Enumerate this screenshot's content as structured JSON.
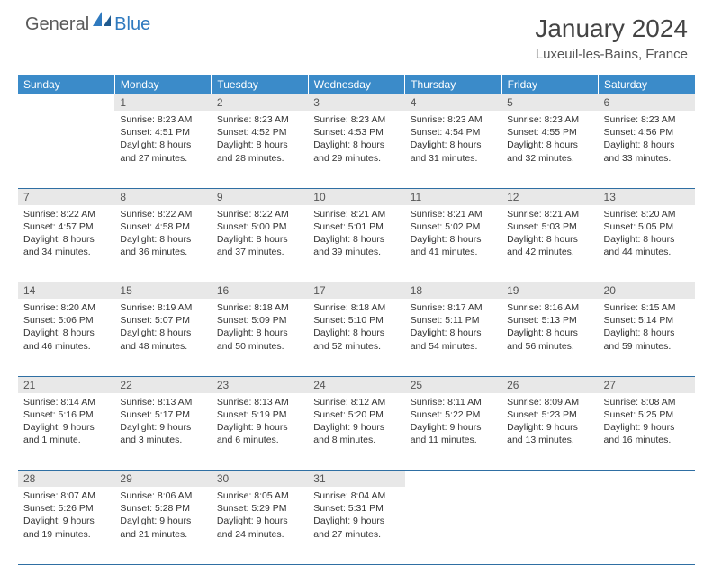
{
  "brand": {
    "part1": "General",
    "part2": "Blue"
  },
  "title": "January 2024",
  "location": "Luxeuil-les-Bains, France",
  "colors": {
    "header_bg": "#3b8bc9",
    "header_fg": "#ffffff",
    "daynum_bg": "#e8e8e8",
    "rule": "#2f6fa3",
    "brand_accent": "#2f7abf",
    "text": "#333333"
  },
  "weekdays": [
    "Sunday",
    "Monday",
    "Tuesday",
    "Wednesday",
    "Thursday",
    "Friday",
    "Saturday"
  ],
  "weeks": [
    [
      {
        "n": "",
        "sunrise": "",
        "sunset": "",
        "daylight": ""
      },
      {
        "n": "1",
        "sunrise": "Sunrise: 8:23 AM",
        "sunset": "Sunset: 4:51 PM",
        "daylight": "Daylight: 8 hours and 27 minutes."
      },
      {
        "n": "2",
        "sunrise": "Sunrise: 8:23 AM",
        "sunset": "Sunset: 4:52 PM",
        "daylight": "Daylight: 8 hours and 28 minutes."
      },
      {
        "n": "3",
        "sunrise": "Sunrise: 8:23 AM",
        "sunset": "Sunset: 4:53 PM",
        "daylight": "Daylight: 8 hours and 29 minutes."
      },
      {
        "n": "4",
        "sunrise": "Sunrise: 8:23 AM",
        "sunset": "Sunset: 4:54 PM",
        "daylight": "Daylight: 8 hours and 31 minutes."
      },
      {
        "n": "5",
        "sunrise": "Sunrise: 8:23 AM",
        "sunset": "Sunset: 4:55 PM",
        "daylight": "Daylight: 8 hours and 32 minutes."
      },
      {
        "n": "6",
        "sunrise": "Sunrise: 8:23 AM",
        "sunset": "Sunset: 4:56 PM",
        "daylight": "Daylight: 8 hours and 33 minutes."
      }
    ],
    [
      {
        "n": "7",
        "sunrise": "Sunrise: 8:22 AM",
        "sunset": "Sunset: 4:57 PM",
        "daylight": "Daylight: 8 hours and 34 minutes."
      },
      {
        "n": "8",
        "sunrise": "Sunrise: 8:22 AM",
        "sunset": "Sunset: 4:58 PM",
        "daylight": "Daylight: 8 hours and 36 minutes."
      },
      {
        "n": "9",
        "sunrise": "Sunrise: 8:22 AM",
        "sunset": "Sunset: 5:00 PM",
        "daylight": "Daylight: 8 hours and 37 minutes."
      },
      {
        "n": "10",
        "sunrise": "Sunrise: 8:21 AM",
        "sunset": "Sunset: 5:01 PM",
        "daylight": "Daylight: 8 hours and 39 minutes."
      },
      {
        "n": "11",
        "sunrise": "Sunrise: 8:21 AM",
        "sunset": "Sunset: 5:02 PM",
        "daylight": "Daylight: 8 hours and 41 minutes."
      },
      {
        "n": "12",
        "sunrise": "Sunrise: 8:21 AM",
        "sunset": "Sunset: 5:03 PM",
        "daylight": "Daylight: 8 hours and 42 minutes."
      },
      {
        "n": "13",
        "sunrise": "Sunrise: 8:20 AM",
        "sunset": "Sunset: 5:05 PM",
        "daylight": "Daylight: 8 hours and 44 minutes."
      }
    ],
    [
      {
        "n": "14",
        "sunrise": "Sunrise: 8:20 AM",
        "sunset": "Sunset: 5:06 PM",
        "daylight": "Daylight: 8 hours and 46 minutes."
      },
      {
        "n": "15",
        "sunrise": "Sunrise: 8:19 AM",
        "sunset": "Sunset: 5:07 PM",
        "daylight": "Daylight: 8 hours and 48 minutes."
      },
      {
        "n": "16",
        "sunrise": "Sunrise: 8:18 AM",
        "sunset": "Sunset: 5:09 PM",
        "daylight": "Daylight: 8 hours and 50 minutes."
      },
      {
        "n": "17",
        "sunrise": "Sunrise: 8:18 AM",
        "sunset": "Sunset: 5:10 PM",
        "daylight": "Daylight: 8 hours and 52 minutes."
      },
      {
        "n": "18",
        "sunrise": "Sunrise: 8:17 AM",
        "sunset": "Sunset: 5:11 PM",
        "daylight": "Daylight: 8 hours and 54 minutes."
      },
      {
        "n": "19",
        "sunrise": "Sunrise: 8:16 AM",
        "sunset": "Sunset: 5:13 PM",
        "daylight": "Daylight: 8 hours and 56 minutes."
      },
      {
        "n": "20",
        "sunrise": "Sunrise: 8:15 AM",
        "sunset": "Sunset: 5:14 PM",
        "daylight": "Daylight: 8 hours and 59 minutes."
      }
    ],
    [
      {
        "n": "21",
        "sunrise": "Sunrise: 8:14 AM",
        "sunset": "Sunset: 5:16 PM",
        "daylight": "Daylight: 9 hours and 1 minute."
      },
      {
        "n": "22",
        "sunrise": "Sunrise: 8:13 AM",
        "sunset": "Sunset: 5:17 PM",
        "daylight": "Daylight: 9 hours and 3 minutes."
      },
      {
        "n": "23",
        "sunrise": "Sunrise: 8:13 AM",
        "sunset": "Sunset: 5:19 PM",
        "daylight": "Daylight: 9 hours and 6 minutes."
      },
      {
        "n": "24",
        "sunrise": "Sunrise: 8:12 AM",
        "sunset": "Sunset: 5:20 PM",
        "daylight": "Daylight: 9 hours and 8 minutes."
      },
      {
        "n": "25",
        "sunrise": "Sunrise: 8:11 AM",
        "sunset": "Sunset: 5:22 PM",
        "daylight": "Daylight: 9 hours and 11 minutes."
      },
      {
        "n": "26",
        "sunrise": "Sunrise: 8:09 AM",
        "sunset": "Sunset: 5:23 PM",
        "daylight": "Daylight: 9 hours and 13 minutes."
      },
      {
        "n": "27",
        "sunrise": "Sunrise: 8:08 AM",
        "sunset": "Sunset: 5:25 PM",
        "daylight": "Daylight: 9 hours and 16 minutes."
      }
    ],
    [
      {
        "n": "28",
        "sunrise": "Sunrise: 8:07 AM",
        "sunset": "Sunset: 5:26 PM",
        "daylight": "Daylight: 9 hours and 19 minutes."
      },
      {
        "n": "29",
        "sunrise": "Sunrise: 8:06 AM",
        "sunset": "Sunset: 5:28 PM",
        "daylight": "Daylight: 9 hours and 21 minutes."
      },
      {
        "n": "30",
        "sunrise": "Sunrise: 8:05 AM",
        "sunset": "Sunset: 5:29 PM",
        "daylight": "Daylight: 9 hours and 24 minutes."
      },
      {
        "n": "31",
        "sunrise": "Sunrise: 8:04 AM",
        "sunset": "Sunset: 5:31 PM",
        "daylight": "Daylight: 9 hours and 27 minutes."
      },
      {
        "n": "",
        "sunrise": "",
        "sunset": "",
        "daylight": ""
      },
      {
        "n": "",
        "sunrise": "",
        "sunset": "",
        "daylight": ""
      },
      {
        "n": "",
        "sunrise": "",
        "sunset": "",
        "daylight": ""
      }
    ]
  ]
}
